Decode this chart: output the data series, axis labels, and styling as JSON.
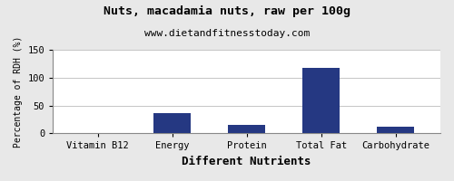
{
  "title": "Nuts, macadamia nuts, raw per 100g",
  "subtitle": "www.dietandfitnesstoday.com",
  "xlabel": "Different Nutrients",
  "ylabel": "Percentage of RDH (%)",
  "categories": [
    "Vitamin B12",
    "Energy",
    "Protein",
    "Total Fat",
    "Carbohydrate"
  ],
  "values": [
    0,
    36,
    15,
    118,
    12
  ],
  "bar_color": "#253882",
  "ylim": [
    0,
    150
  ],
  "yticks": [
    0,
    50,
    100,
    150
  ],
  "background_color": "#e8e8e8",
  "plot_background_color": "#ffffff",
  "title_fontsize": 9.5,
  "subtitle_fontsize": 8,
  "xlabel_fontsize": 9,
  "ylabel_fontsize": 7,
  "tick_fontsize": 7.5
}
